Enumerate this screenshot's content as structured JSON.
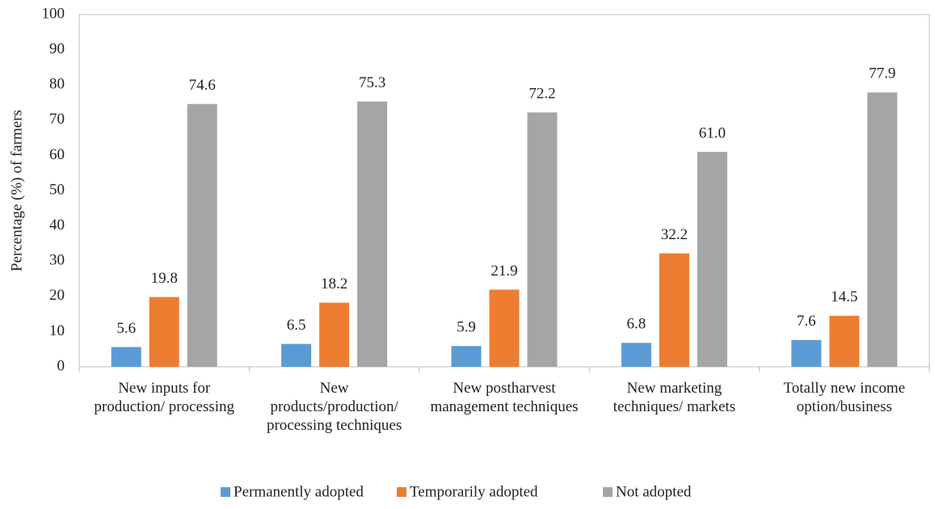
{
  "chart_data": {
    "type": "bar",
    "y_label": "Percentage (%) of farmers",
    "categories": [
      "New inputs for production/ processing",
      "New products/production/ processing techniques",
      "New postharvest management techniques",
      "New marketing techniques/ markets",
      "Totally new income option/business"
    ],
    "series": [
      {
        "name": "Permanently adopted",
        "color": "#5b9bd5",
        "values": [
          5.6,
          6.5,
          5.9,
          6.8,
          7.6
        ],
        "value_labels": [
          "5.6",
          "6.5",
          "5.9",
          "6.8",
          "7.6"
        ]
      },
      {
        "name": "Temporarily adopted",
        "color": "#ed7d31",
        "values": [
          19.8,
          18.2,
          21.9,
          32.2,
          14.5
        ],
        "value_labels": [
          "19.8",
          "18.2",
          "21.9",
          "32.2",
          "14.5"
        ]
      },
      {
        "name": "Not adopted",
        "color": "#a5a5a5",
        "values": [
          74.6,
          75.3,
          72.2,
          61.0,
          77.9
        ],
        "value_labels": [
          "74.6",
          "75.3",
          "72.2",
          "61.0",
          "77.9"
        ]
      }
    ],
    "ylim": [
      0,
      100
    ],
    "yticks": [
      0,
      10,
      20,
      30,
      40,
      50,
      60,
      70,
      80,
      90,
      100
    ],
    "grid": false,
    "legend": "bottom"
  }
}
